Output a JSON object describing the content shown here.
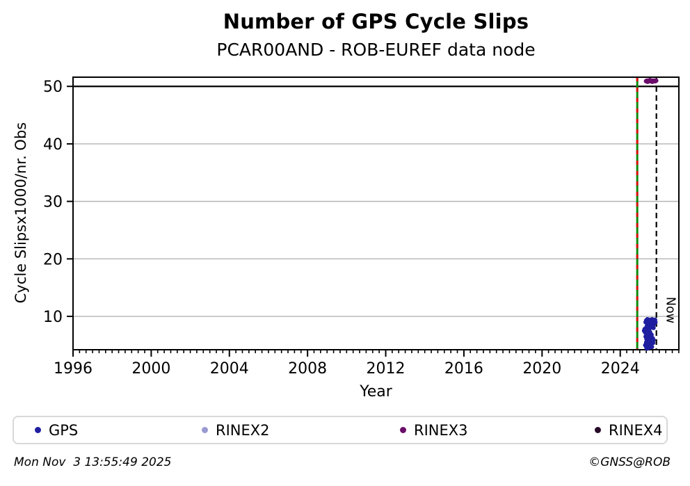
{
  "header": {
    "title": "Number of GPS Cycle Slips",
    "subtitle": "PCAR00AND - ROB-EUREF data node"
  },
  "footer": {
    "timestamp": "Mon Nov  3 13:55:49 2025",
    "copyright": "©GNSS@ROB"
  },
  "chart_data": {
    "type": "scatter",
    "title": "Number of GPS Cycle Slips",
    "subtitle": "PCAR00AND - ROB-EUREF data node",
    "xlabel": "Year",
    "ylabel": "Cycle Slipsx1000/nr. Obs",
    "xlim": [
      1996,
      2027
    ],
    "ylim": [
      4.2,
      51.6
    ],
    "x_major_ticks": [
      1996,
      2000,
      2004,
      2008,
      2012,
      2016,
      2020,
      2024
    ],
    "x_minor_tick_step_years": 0.3333,
    "y_ticks": [
      10,
      20,
      30,
      40,
      50
    ],
    "y_gridlines": [
      10,
      20,
      30,
      40
    ],
    "grid_color": "#b4b4b4",
    "threshold_line_y": 50,
    "threshold_line_color": "#000000",
    "legend_position": "bottom",
    "vlines": [
      {
        "name": "install-date",
        "x": 2024.87,
        "style": "solid-with-red-dashes",
        "line_color": "#0a8a0a",
        "dash_color": "#dd1111",
        "label": ""
      },
      {
        "name": "now",
        "x": 2025.85,
        "style": "dashed",
        "line_color": "#000000",
        "label": "Now"
      }
    ],
    "series": [
      {
        "name": "GPS",
        "color": "#1f1fa0",
        "marker": "dot",
        "points": [
          [
            2025.3,
            9.0
          ],
          [
            2025.33,
            9.3
          ],
          [
            2025.36,
            8.8
          ],
          [
            2025.39,
            9.5
          ],
          [
            2025.42,
            9.1
          ],
          [
            2025.45,
            8.6
          ],
          [
            2025.48,
            9.4
          ],
          [
            2025.51,
            9.0
          ],
          [
            2025.54,
            8.3
          ],
          [
            2025.57,
            9.2
          ],
          [
            2025.6,
            8.8
          ],
          [
            2025.63,
            9.5
          ],
          [
            2025.66,
            9.0
          ],
          [
            2025.69,
            8.5
          ],
          [
            2025.72,
            9.2
          ],
          [
            2025.75,
            8.8
          ],
          [
            2025.78,
            9.4
          ],
          [
            2025.8,
            9.0
          ],
          [
            2025.35,
            8.2
          ],
          [
            2025.44,
            8.1
          ],
          [
            2025.52,
            8.0
          ],
          [
            2025.61,
            8.1
          ],
          [
            2025.7,
            8.0
          ],
          [
            2025.22,
            7.5
          ],
          [
            2025.25,
            7.8
          ],
          [
            2025.28,
            7.2
          ],
          [
            2025.31,
            7.6
          ],
          [
            2025.34,
            7.0
          ],
          [
            2025.37,
            7.4
          ],
          [
            2025.4,
            7.7
          ],
          [
            2025.43,
            7.1
          ],
          [
            2025.46,
            7.5
          ],
          [
            2025.49,
            6.9
          ],
          [
            2025.52,
            7.3
          ],
          [
            2025.55,
            7.0
          ],
          [
            2025.3,
            6.5
          ],
          [
            2025.34,
            6.1
          ],
          [
            2025.38,
            6.6
          ],
          [
            2025.42,
            5.8
          ],
          [
            2025.46,
            6.3
          ],
          [
            2025.5,
            5.6
          ],
          [
            2025.54,
            6.0
          ],
          [
            2025.58,
            6.5
          ],
          [
            2025.62,
            5.7
          ],
          [
            2025.66,
            6.2
          ],
          [
            2025.7,
            5.9
          ],
          [
            2025.33,
            5.5
          ],
          [
            2025.45,
            5.4
          ],
          [
            2025.57,
            5.5
          ],
          [
            2025.68,
            5.4
          ],
          [
            2025.4,
            6.8
          ],
          [
            2025.6,
            6.8
          ],
          [
            2025.28,
            5.0
          ],
          [
            2025.33,
            4.7
          ],
          [
            2025.38,
            5.1
          ],
          [
            2025.43,
            4.5
          ],
          [
            2025.48,
            4.9
          ],
          [
            2025.53,
            4.6
          ],
          [
            2025.58,
            5.0
          ],
          [
            2025.62,
            4.7
          ],
          [
            2025.36,
            4.4
          ],
          [
            2025.5,
            5.2
          ]
        ]
      },
      {
        "name": "RINEX2",
        "color": "#9a9ad2",
        "marker": "dot",
        "points": []
      },
      {
        "name": "RINEX3",
        "color": "#6a0d6a",
        "marker": "dot",
        "points": [
          [
            2025.32,
            50.9
          ],
          [
            2025.36,
            51.0
          ],
          [
            2025.4,
            50.8
          ],
          [
            2025.44,
            51.0
          ],
          [
            2025.48,
            50.9
          ],
          [
            2025.52,
            51.1
          ],
          [
            2025.56,
            50.9
          ],
          [
            2025.6,
            51.0
          ],
          [
            2025.64,
            50.8
          ],
          [
            2025.68,
            51.0
          ],
          [
            2025.72,
            50.9
          ],
          [
            2025.76,
            51.0
          ],
          [
            2025.8,
            50.9
          ],
          [
            2025.84,
            51.0
          ]
        ]
      },
      {
        "name": "RINEX4",
        "color": "#260b28",
        "marker": "dot",
        "points": []
      }
    ]
  }
}
